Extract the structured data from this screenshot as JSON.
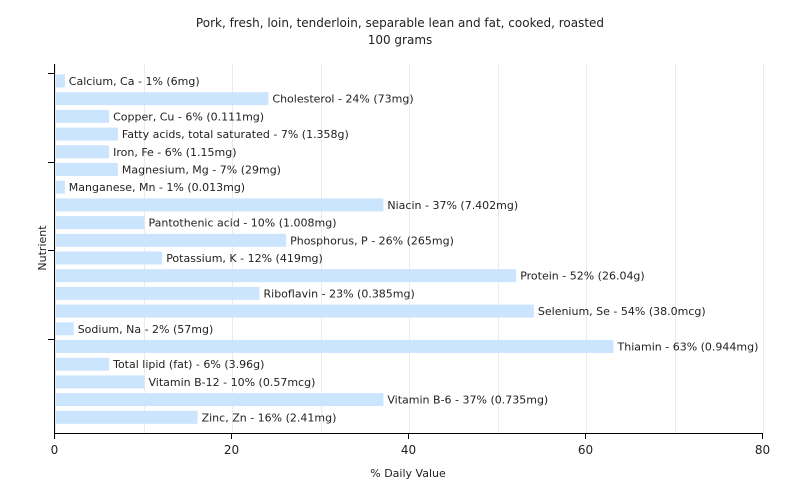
{
  "chart_data": {
    "type": "bar",
    "orientation": "horizontal",
    "title": "Pork, fresh, loin, tenderloin, separable lean and fat, cooked, roasted",
    "subtitle": "100 grams",
    "xlabel": "% Daily Value",
    "ylabel": "Nutrient",
    "xlim": [
      0,
      80
    ],
    "xticks": [
      0,
      20,
      40,
      60,
      80
    ],
    "grid": true,
    "bar_color": "#cce5ff",
    "categories": [
      "Calcium, Ca",
      "Cholesterol",
      "Copper, Cu",
      "Fatty acids, total saturated",
      "Iron, Fe",
      "Magnesium, Mg",
      "Manganese, Mn",
      "Niacin",
      "Pantothenic acid",
      "Phosphorus, P",
      "Potassium, K",
      "Protein",
      "Riboflavin",
      "Selenium, Se",
      "Sodium, Na",
      "Thiamin",
      "Total lipid (fat)",
      "Vitamin B-12",
      "Vitamin B-6",
      "Zinc, Zn"
    ],
    "values": [
      1,
      24,
      6,
      7,
      6,
      7,
      1,
      37,
      10,
      26,
      12,
      52,
      23,
      54,
      2,
      63,
      6,
      10,
      37,
      16
    ],
    "labels": [
      "Calcium, Ca - 1% (6mg)",
      "Cholesterol - 24% (73mg)",
      "Copper, Cu - 6% (0.111mg)",
      "Fatty acids, total saturated - 7% (1.358g)",
      "Iron, Fe - 6% (1.15mg)",
      "Magnesium, Mg - 7% (29mg)",
      "Manganese, Mn - 1% (0.013mg)",
      "Niacin - 37% (7.402mg)",
      "Pantothenic acid - 10% (1.008mg)",
      "Phosphorus, P - 26% (265mg)",
      "Potassium, K - 12% (419mg)",
      "Protein - 52% (26.04g)",
      "Riboflavin - 23% (0.385mg)",
      "Selenium, Se - 54% (38.0mcg)",
      "Sodium, Na - 2% (57mg)",
      "Thiamin - 63% (0.944mg)",
      "Total lipid (fat) - 6% (3.96g)",
      "Vitamin B-12 - 10% (0.57mcg)",
      "Vitamin B-6 - 37% (0.735mg)",
      "Zinc, Zn - 16% (2.41mg)"
    ]
  }
}
